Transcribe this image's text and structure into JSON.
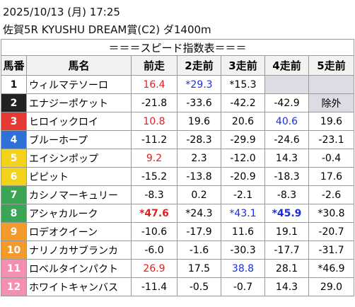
{
  "header": {
    "datetime": "2025/10/13 (月) 17:25",
    "race": "佐賀5R KYUSHU DREAM賞(C2) ダ1400m"
  },
  "table": {
    "title": "＝＝＝スピード指数表＝＝＝",
    "columns": [
      "馬番",
      "馬名",
      "前走",
      "2走前",
      "3走前",
      "4走前",
      "5走前"
    ],
    "rows": [
      [
        "1",
        "ウィルマテソーロ",
        "16.4",
        "*29.3",
        "*15.3",
        null,
        null
      ],
      [
        "2",
        "エナジーポケット",
        "-21.8",
        "-33.6",
        "-42.2",
        "-42.9",
        "除外"
      ],
      [
        "3",
        "ヒロイックロイ",
        "10.8",
        "19.6",
        "20.6",
        "40.6",
        "19.6"
      ],
      [
        "4",
        "ブルーホープ",
        "-11.2",
        "-28.3",
        "-29.9",
        "-24.6",
        "-23.1"
      ],
      [
        "5",
        "エイシンポップ",
        "9.2",
        "2.3",
        "-12.0",
        "14.3",
        "-0.4"
      ],
      [
        "6",
        "ピピット",
        "-15.2",
        "-13.8",
        "-20.9",
        "-18.3",
        "17.6"
      ],
      [
        "7",
        "カシノマーキュリー",
        "-8.3",
        "0.2",
        "-2.1",
        "-8.3",
        "-2.6"
      ],
      [
        "8",
        "アシャカルーク",
        "*47.6",
        "*24.3",
        "*43.1",
        "*45.9",
        "*30.8"
      ],
      [
        "9",
        "ロデオクイーン",
        "-10.6",
        "-17.9",
        "11.6",
        "19.1",
        "-20.7"
      ],
      [
        "10",
        "ナリノカサブランカ",
        "-6.0",
        "-1.6",
        "-30.3",
        "-17.7",
        "-31.7"
      ],
      [
        "11",
        "ロベルタインパクト",
        "26.9",
        "17.5",
        "38.8",
        "28.1",
        "*46.9"
      ],
      [
        "12",
        "ホワイトキャンバス",
        "-11.4",
        "-0.5",
        "-0.7",
        "14.3",
        "29.0"
      ]
    ]
  }
}
